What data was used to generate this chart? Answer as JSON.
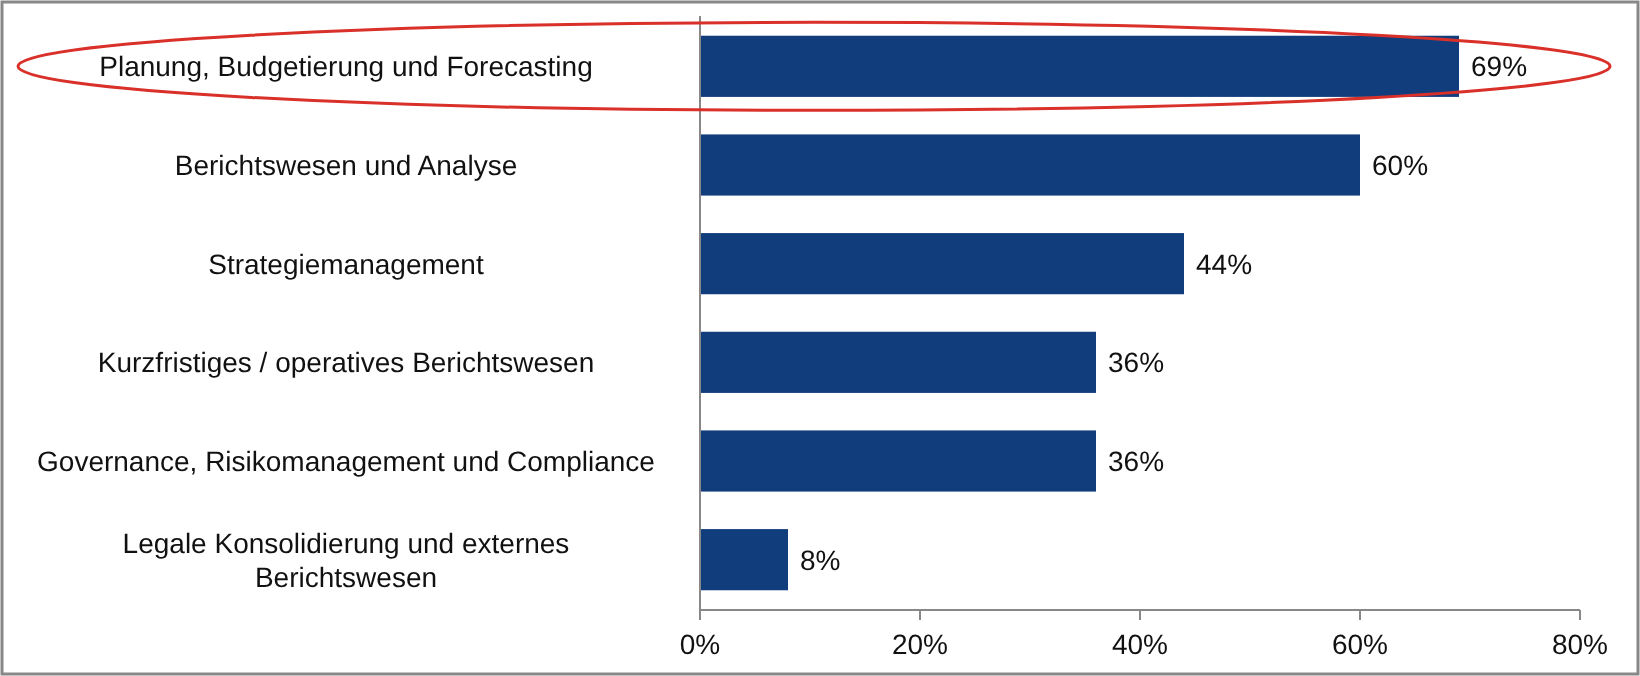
{
  "chart_data": {
    "type": "bar",
    "orientation": "horizontal",
    "categories": [
      "Planung, Budgetierung und Forecasting",
      "Berichtswesen und Analyse",
      "Strategiemanagement",
      "Kurzfristiges / operatives Berichtswesen",
      "Governance, Risikomanagement und Compliance",
      "Legale Konsolidierung und externes Berichtswesen"
    ],
    "values": [
      69,
      60,
      44,
      36,
      36,
      8
    ],
    "value_labels": [
      "69%",
      "60%",
      "44%",
      "36%",
      "36%",
      "8%"
    ],
    "color": "#123d7c",
    "xlim": [
      0,
      80
    ],
    "xticks": [
      {
        "value": 0,
        "label": "0%"
      },
      {
        "value": 20,
        "label": "20%"
      },
      {
        "value": 40,
        "label": "40%"
      },
      {
        "value": 60,
        "label": "60%"
      },
      {
        "value": 80,
        "label": "80%"
      }
    ],
    "grid": false
  }
}
